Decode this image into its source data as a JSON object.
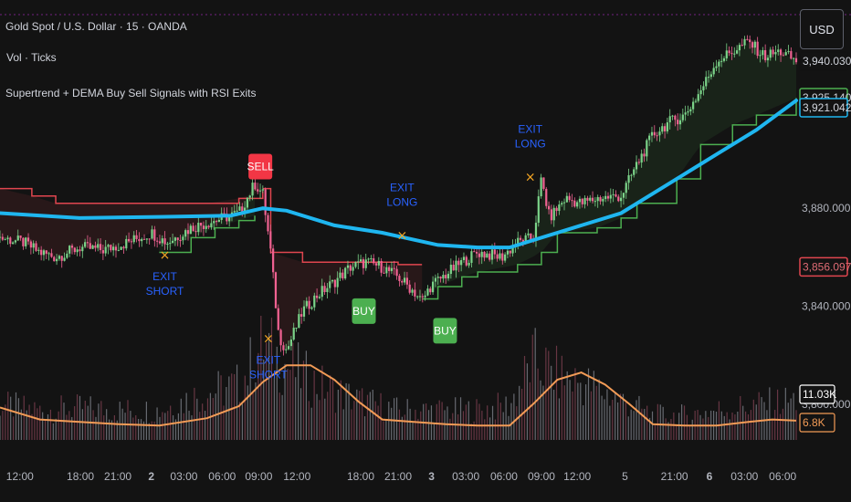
{
  "header": {
    "symbol_title": "Gold Spot / U.S. Dollar · 15 · OANDA",
    "volume_label": "Vol · Ticks",
    "indicator_name": "Supertrend + DEMA Buy Sell Signals with RSI Exits",
    "currency_button": "USD"
  },
  "colors": {
    "background": "#131313",
    "dema": "#1fb6f0",
    "supertrend_up": "#4caf50",
    "supertrend_down": "#e0464f",
    "candle_up": "#7bd389",
    "candle_down": "#f06292",
    "buy": "#4caf50",
    "sell": "#f23645",
    "exit_text": "#2962ff",
    "exit_mark": "#f5a623",
    "volume_ma": "#f29b56"
  },
  "chart_data": {
    "type": "candlestick",
    "title": "Gold Spot / U.S. Dollar · 15 · OANDA",
    "price_axis": {
      "ticks": [
        3800,
        3840,
        3880
      ],
      "tick_labels": [
        "3,800.000",
        "3,840.000",
        "3,880.000"
      ],
      "ylim": [
        3775,
        3965
      ]
    },
    "price_tags": [
      {
        "label": "3,940.030",
        "value": 3940.03,
        "style": "plain"
      },
      {
        "label": "3,925.140",
        "value": 3925.14,
        "style": "green"
      },
      {
        "label": "3,921.042",
        "value": 3921.042,
        "style": "blue"
      },
      {
        "label": "3,856.097",
        "value": 3856.097,
        "style": "red"
      }
    ],
    "volume_tags": [
      {
        "label": "11.03K",
        "style": "white"
      },
      {
        "label": "6.8K",
        "style": "orange"
      }
    ],
    "x_ticks": [
      {
        "label": "12:00",
        "pos": 0.025,
        "bold": false
      },
      {
        "label": "18:00",
        "pos": 0.101,
        "bold": false
      },
      {
        "label": "21:00",
        "pos": 0.148,
        "bold": false
      },
      {
        "label": "2",
        "pos": 0.19,
        "bold": true
      },
      {
        "label": "03:00",
        "pos": 0.231,
        "bold": false
      },
      {
        "label": "06:00",
        "pos": 0.279,
        "bold": false
      },
      {
        "label": "09:00",
        "pos": 0.325,
        "bold": false
      },
      {
        "label": "12:00",
        "pos": 0.373,
        "bold": false
      },
      {
        "label": "18:00",
        "pos": 0.453,
        "bold": false
      },
      {
        "label": "21:00",
        "pos": 0.5,
        "bold": false
      },
      {
        "label": "3",
        "pos": 0.542,
        "bold": true
      },
      {
        "label": "03:00",
        "pos": 0.585,
        "bold": false
      },
      {
        "label": "06:00",
        "pos": 0.633,
        "bold": false
      },
      {
        "label": "09:00",
        "pos": 0.68,
        "bold": false
      },
      {
        "label": "12:00",
        "pos": 0.725,
        "bold": false
      },
      {
        "label": "5",
        "pos": 0.785,
        "bold": false
      },
      {
        "label": "21:00",
        "pos": 0.847,
        "bold": false
      },
      {
        "label": "6",
        "pos": 0.891,
        "bold": true
      },
      {
        "label": "03:00",
        "pos": 0.935,
        "bold": false
      },
      {
        "label": "06:00",
        "pos": 0.983,
        "bold": false
      }
    ],
    "dema": {
      "name": "DEMA",
      "points": [
        [
          0,
          3878
        ],
        [
          0.1,
          3876
        ],
        [
          0.2,
          3876.5
        ],
        [
          0.29,
          3877
        ],
        [
          0.33,
          3880
        ],
        [
          0.36,
          3879
        ],
        [
          0.42,
          3873
        ],
        [
          0.48,
          3870
        ],
        [
          0.55,
          3865
        ],
        [
          0.6,
          3864
        ],
        [
          0.64,
          3864
        ],
        [
          0.7,
          3870
        ],
        [
          0.78,
          3878
        ],
        [
          0.84,
          3890
        ],
        [
          0.9,
          3902
        ],
        [
          0.95,
          3912
        ],
        [
          1,
          3924
        ]
      ]
    },
    "supertrend": [
      {
        "direction": "down",
        "steps": [
          [
            0,
            3888
          ],
          [
            0.04,
            3885
          ],
          [
            0.07,
            3882
          ],
          [
            0.1,
            3882
          ],
          [
            0.15,
            3882
          ],
          [
            0.2,
            3882
          ],
          [
            0.26,
            3882
          ],
          [
            0.3,
            3884
          ],
          [
            0.33,
            3887
          ]
        ]
      },
      {
        "direction": "up",
        "steps": [
          [
            0.2,
            3862
          ],
          [
            0.24,
            3868
          ],
          [
            0.27,
            3872
          ],
          [
            0.3,
            3875
          ],
          [
            0.32,
            3877
          ]
        ]
      },
      {
        "direction": "down",
        "steps": [
          [
            0.33,
            3888
          ],
          [
            0.34,
            3862
          ],
          [
            0.38,
            3858
          ],
          [
            0.45,
            3858
          ],
          [
            0.5,
            3857
          ],
          [
            0.53,
            3857
          ]
        ]
      },
      {
        "direction": "up",
        "steps": [
          [
            0.53,
            3843
          ],
          [
            0.55,
            3848
          ],
          [
            0.58,
            3852
          ],
          [
            0.6,
            3854
          ],
          [
            0.65,
            3857
          ],
          [
            0.68,
            3862
          ],
          [
            0.7,
            3870
          ],
          [
            0.75,
            3872
          ],
          [
            0.78,
            3876
          ],
          [
            0.8,
            3882
          ],
          [
            0.85,
            3892
          ],
          [
            0.88,
            3906
          ],
          [
            0.92,
            3914
          ],
          [
            0.95,
            3918
          ],
          [
            1,
            3925
          ]
        ]
      }
    ],
    "candles_close_path": [
      [
        0,
        3868
      ],
      [
        0.03,
        3866
      ],
      [
        0.05,
        3862
      ],
      [
        0.07,
        3860
      ],
      [
        0.1,
        3864
      ],
      [
        0.13,
        3863
      ],
      [
        0.16,
        3866
      ],
      [
        0.19,
        3870
      ],
      [
        0.21,
        3866
      ],
      [
        0.24,
        3872
      ],
      [
        0.27,
        3875
      ],
      [
        0.3,
        3878
      ],
      [
        0.32,
        3890
      ],
      [
        0.33,
        3886
      ],
      [
        0.34,
        3862
      ],
      [
        0.35,
        3828
      ],
      [
        0.36,
        3822
      ],
      [
        0.37,
        3830
      ],
      [
        0.38,
        3838
      ],
      [
        0.4,
        3845
      ],
      [
        0.42,
        3850
      ],
      [
        0.44,
        3856
      ],
      [
        0.46,
        3858
      ],
      [
        0.48,
        3856
      ],
      [
        0.5,
        3852
      ],
      [
        0.52,
        3846
      ],
      [
        0.53,
        3842
      ],
      [
        0.54,
        3848
      ],
      [
        0.56,
        3853
      ],
      [
        0.58,
        3858
      ],
      [
        0.6,
        3862
      ],
      [
        0.63,
        3860
      ],
      [
        0.65,
        3866
      ],
      [
        0.67,
        3868
      ],
      [
        0.68,
        3892
      ],
      [
        0.69,
        3876
      ],
      [
        0.71,
        3884
      ],
      [
        0.73,
        3882
      ],
      [
        0.75,
        3884
      ],
      [
        0.78,
        3885
      ],
      [
        0.8,
        3898
      ],
      [
        0.82,
        3910
      ],
      [
        0.84,
        3915
      ],
      [
        0.86,
        3918
      ],
      [
        0.88,
        3928
      ],
      [
        0.9,
        3940
      ],
      [
        0.92,
        3944
      ],
      [
        0.94,
        3948
      ],
      [
        0.96,
        3942
      ],
      [
        0.98,
        3944
      ],
      [
        1,
        3940
      ]
    ],
    "signals": [
      {
        "type": "sell",
        "label": "SELL",
        "x": 0.327,
        "price": 3897
      },
      {
        "type": "buy",
        "label": "BUY",
        "x": 0.457,
        "price": 3838
      },
      {
        "type": "buy",
        "label": "BUY",
        "x": 0.559,
        "price": 3830
      }
    ],
    "exits": [
      {
        "lines": [
          "EXIT",
          "SHORT"
        ],
        "x": 0.207,
        "price": 3861,
        "text_pos": "below"
      },
      {
        "lines": [
          "EXIT",
          "SHORT"
        ],
        "x": 0.337,
        "price": 3827,
        "text_pos": "below"
      },
      {
        "lines": [
          "EXIT",
          "LONG"
        ],
        "x": 0.505,
        "price": 3869,
        "text_pos": "above"
      },
      {
        "lines": [
          "EXIT",
          "LONG"
        ],
        "x": 0.666,
        "price": 3893,
        "text_pos": "above"
      }
    ],
    "volume_ma_path": [
      [
        0,
        0.27
      ],
      [
        0.05,
        0.17
      ],
      [
        0.1,
        0.15
      ],
      [
        0.15,
        0.13
      ],
      [
        0.2,
        0.12
      ],
      [
        0.26,
        0.18
      ],
      [
        0.3,
        0.28
      ],
      [
        0.33,
        0.48
      ],
      [
        0.36,
        0.62
      ],
      [
        0.39,
        0.62
      ],
      [
        0.42,
        0.5
      ],
      [
        0.45,
        0.32
      ],
      [
        0.48,
        0.17
      ],
      [
        0.52,
        0.15
      ],
      [
        0.56,
        0.13
      ],
      [
        0.6,
        0.12
      ],
      [
        0.64,
        0.12
      ],
      [
        0.67,
        0.3
      ],
      [
        0.7,
        0.5
      ],
      [
        0.73,
        0.56
      ],
      [
        0.76,
        0.46
      ],
      [
        0.79,
        0.3
      ],
      [
        0.82,
        0.13
      ],
      [
        0.86,
        0.12
      ],
      [
        0.9,
        0.12
      ],
      [
        0.94,
        0.15
      ],
      [
        0.97,
        0.17
      ],
      [
        1,
        0.16
      ]
    ],
    "volume_ma_ylim": [
      0,
      1
    ],
    "volume_profile": [
      [
        0,
        0.35
      ],
      [
        0.05,
        0.3
      ],
      [
        0.1,
        0.32
      ],
      [
        0.15,
        0.3
      ],
      [
        0.2,
        0.3
      ],
      [
        0.25,
        0.45
      ],
      [
        0.3,
        0.55
      ],
      [
        0.33,
        0.95
      ],
      [
        0.36,
        0.75
      ],
      [
        0.4,
        0.55
      ],
      [
        0.45,
        0.4
      ],
      [
        0.5,
        0.3
      ],
      [
        0.55,
        0.3
      ],
      [
        0.6,
        0.3
      ],
      [
        0.64,
        0.35
      ],
      [
        0.67,
        0.8
      ],
      [
        0.7,
        0.65
      ],
      [
        0.74,
        0.55
      ],
      [
        0.78,
        0.4
      ],
      [
        0.82,
        0.25
      ],
      [
        0.86,
        0.25
      ],
      [
        0.9,
        0.3
      ],
      [
        0.95,
        0.35
      ],
      [
        1,
        0.4
      ]
    ],
    "volume_ylim": [
      0,
      1
    ]
  }
}
